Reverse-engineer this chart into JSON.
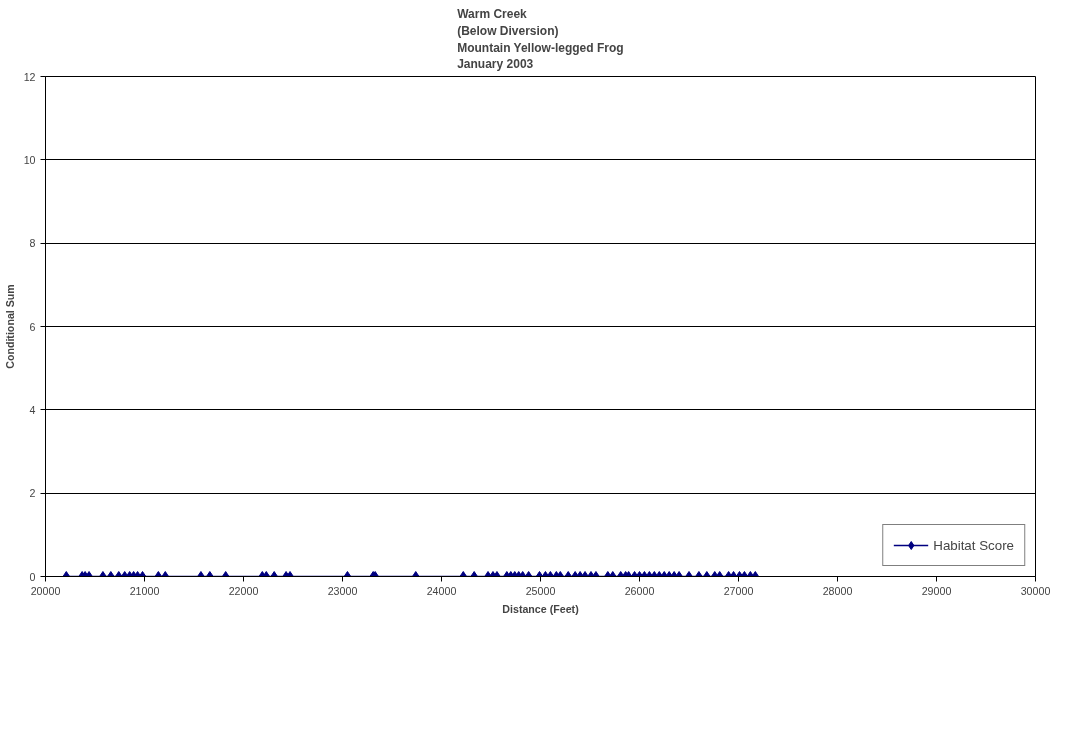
{
  "chart_data": {
    "type": "line",
    "title": "Warm Creek\n(Below Diversion)\nMountain Yellow-legged Frog\nJanuary 2003",
    "xlabel": "Distance (Feet)",
    "ylabel": "Conditional Sum",
    "x": [
      20210,
      20370,
      20400,
      20440,
      20580,
      20660,
      20740,
      20800,
      20850,
      20890,
      20930,
      20980,
      21140,
      21210,
      21570,
      21660,
      21820,
      22190,
      22230,
      22310,
      22430,
      22470,
      23050,
      23310,
      23330,
      23740,
      24220,
      24330,
      24470,
      24520,
      24560,
      24660,
      24700,
      24740,
      24780,
      24820,
      24880,
      24990,
      25050,
      25100,
      25160,
      25200,
      25280,
      25350,
      25400,
      25450,
      25510,
      25560,
      25680,
      25730,
      25810,
      25860,
      25890,
      25950,
      26000,
      26050,
      26100,
      26150,
      26200,
      26250,
      26300,
      26350,
      26400,
      26500,
      26600,
      26680,
      26760,
      26810,
      26900,
      26950,
      27010,
      27060,
      27120,
      27170
    ],
    "series": [
      {
        "name": "Habitat Score",
        "color": "#000080",
        "values": [
          0,
          0,
          0,
          0,
          0,
          0,
          0,
          0,
          0,
          0,
          0,
          0,
          0,
          0,
          0,
          0,
          0,
          0,
          0,
          0,
          0,
          0,
          0,
          0,
          0,
          0,
          0,
          0,
          0,
          0,
          0,
          0,
          0,
          0,
          0,
          0,
          0,
          0,
          0,
          0,
          0,
          0,
          0,
          0,
          0,
          0,
          0,
          0,
          0,
          0,
          0,
          0,
          0,
          0,
          0,
          0,
          0,
          0,
          0,
          0,
          0,
          0,
          0,
          0,
          0,
          0,
          0,
          0,
          0,
          0,
          0,
          0,
          0,
          0
        ]
      }
    ],
    "xlim": [
      20000,
      30000
    ],
    "xticks": [
      20000,
      21000,
      22000,
      23000,
      24000,
      25000,
      26000,
      27000,
      28000,
      29000,
      30000
    ],
    "ylim": [
      0,
      12
    ],
    "yticks": [
      0,
      2,
      4,
      6,
      8,
      10,
      12
    ],
    "grid": "y",
    "legend": "bottom right",
    "marker": "diamond",
    "line_style": "solid"
  }
}
